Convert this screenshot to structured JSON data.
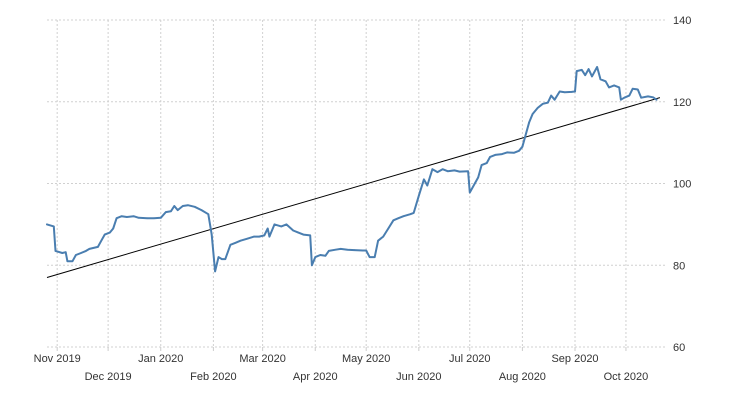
{
  "chart_data": {
    "type": "line",
    "title": "",
    "xlabel": "",
    "ylabel": "",
    "ylim": [
      60,
      140
    ],
    "y_ticks": [
      60,
      80,
      100,
      120,
      140
    ],
    "y_axis_position": "right",
    "grid": true,
    "x_ticks": [
      {
        "date": "2019-11-01",
        "label": "Nov 2019",
        "row": 1
      },
      {
        "date": "2019-12-01",
        "label": "Dec 2019",
        "row": 2
      },
      {
        "date": "2020-01-01",
        "label": "Jan 2020",
        "row": 1
      },
      {
        "date": "2020-02-01",
        "label": "Feb 2020",
        "row": 2
      },
      {
        "date": "2020-03-01",
        "label": "Mar 2020",
        "row": 1
      },
      {
        "date": "2020-04-01",
        "label": "Apr 2020",
        "row": 2
      },
      {
        "date": "2020-05-01",
        "label": "May 2020",
        "row": 1
      },
      {
        "date": "2020-06-01",
        "label": "Jun 2020",
        "row": 2
      },
      {
        "date": "2020-07-01",
        "label": "Jul 2020",
        "row": 1
      },
      {
        "date": "2020-08-01",
        "label": "Aug 2020",
        "row": 2
      },
      {
        "date": "2020-09-01",
        "label": "Sep 2020",
        "row": 1
      },
      {
        "date": "2020-10-01",
        "label": "Oct 2020",
        "row": 2
      }
    ],
    "xlim": [
      "2019-10-26",
      "2020-10-24"
    ],
    "series": [
      {
        "color": "#4a7eb0",
        "points": [
          [
            "2019-10-26",
            90
          ],
          [
            "2019-10-30",
            89.5
          ],
          [
            "2019-10-31",
            83.5
          ],
          [
            "2019-11-04",
            83
          ],
          [
            "2019-11-06",
            83.2
          ],
          [
            "2019-11-07",
            81
          ],
          [
            "2019-11-10",
            81
          ],
          [
            "2019-11-12",
            82.5
          ],
          [
            "2019-11-15",
            83
          ],
          [
            "2019-11-18",
            83.5
          ],
          [
            "2019-11-20",
            84
          ],
          [
            "2019-11-25",
            84.5
          ],
          [
            "2019-11-27",
            86
          ],
          [
            "2019-11-29",
            87.5
          ],
          [
            "2019-12-02",
            88
          ],
          [
            "2019-12-04",
            89
          ],
          [
            "2019-12-06",
            91.5
          ],
          [
            "2019-12-09",
            92
          ],
          [
            "2019-12-12",
            91.8
          ],
          [
            "2019-12-16",
            92
          ],
          [
            "2019-12-19",
            91.6
          ],
          [
            "2019-12-24",
            91.5
          ],
          [
            "2019-12-28",
            91.5
          ],
          [
            "2020-01-01",
            91.6
          ],
          [
            "2020-01-04",
            93
          ],
          [
            "2020-01-07",
            93.2
          ],
          [
            "2020-01-09",
            94.5
          ],
          [
            "2020-01-11",
            93.5
          ],
          [
            "2020-01-14",
            94.5
          ],
          [
            "2020-01-17",
            94.7
          ],
          [
            "2020-01-21",
            94.3
          ],
          [
            "2020-01-25",
            93.5
          ],
          [
            "2020-01-29",
            92.5
          ],
          [
            "2020-01-31",
            87.5
          ],
          [
            "2020-02-02",
            78.5
          ],
          [
            "2020-02-04",
            82
          ],
          [
            "2020-02-06",
            81.5
          ],
          [
            "2020-02-08",
            81.5
          ],
          [
            "2020-02-11",
            85
          ],
          [
            "2020-02-14",
            85.5
          ],
          [
            "2020-02-17",
            86
          ],
          [
            "2020-02-21",
            86.5
          ],
          [
            "2020-02-25",
            87
          ],
          [
            "2020-02-28",
            87
          ],
          [
            "2020-03-02",
            87.3
          ],
          [
            "2020-03-04",
            89
          ],
          [
            "2020-03-05",
            87
          ],
          [
            "2020-03-08",
            90
          ],
          [
            "2020-03-12",
            89.5
          ],
          [
            "2020-03-15",
            90
          ],
          [
            "2020-03-19",
            88.5
          ],
          [
            "2020-03-22",
            88
          ],
          [
            "2020-03-25",
            87.5
          ],
          [
            "2020-03-29",
            87.3
          ],
          [
            "2020-03-30",
            80
          ],
          [
            "2020-04-01",
            82
          ],
          [
            "2020-04-04",
            82.5
          ],
          [
            "2020-04-07",
            82.3
          ],
          [
            "2020-04-09",
            83.5
          ],
          [
            "2020-04-13",
            83.8
          ],
          [
            "2020-04-16",
            84
          ],
          [
            "2020-04-20",
            83.8
          ],
          [
            "2020-04-24",
            83.7
          ],
          [
            "2020-04-29",
            83.6
          ],
          [
            "2020-05-01",
            83.6
          ],
          [
            "2020-05-03",
            82
          ],
          [
            "2020-05-06",
            82
          ],
          [
            "2020-05-08",
            86
          ],
          [
            "2020-05-11",
            87
          ],
          [
            "2020-05-14",
            89
          ],
          [
            "2020-05-17",
            91
          ],
          [
            "2020-05-20",
            91.5
          ],
          [
            "2020-05-23",
            92
          ],
          [
            "2020-05-27",
            92.5
          ],
          [
            "2020-05-29",
            92.8
          ],
          [
            "2020-06-01",
            97
          ],
          [
            "2020-06-04",
            101
          ],
          [
            "2020-06-06",
            99.5
          ],
          [
            "2020-06-09",
            103.5
          ],
          [
            "2020-06-12",
            102.8
          ],
          [
            "2020-06-15",
            103.5
          ],
          [
            "2020-06-18",
            103
          ],
          [
            "2020-06-22",
            103.2
          ],
          [
            "2020-06-25",
            102.9
          ],
          [
            "2020-06-30",
            103
          ],
          [
            "2020-07-01",
            97.8
          ],
          [
            "2020-07-04",
            100
          ],
          [
            "2020-07-06",
            101.5
          ],
          [
            "2020-07-08",
            104.5
          ],
          [
            "2020-07-11",
            105
          ],
          [
            "2020-07-13",
            106.5
          ],
          [
            "2020-07-16",
            107
          ],
          [
            "2020-07-20",
            107.2
          ],
          [
            "2020-07-23",
            107.6
          ],
          [
            "2020-07-27",
            107.5
          ],
          [
            "2020-07-30",
            108
          ],
          [
            "2020-08-01",
            109
          ],
          [
            "2020-08-03",
            112
          ],
          [
            "2020-08-05",
            115
          ],
          [
            "2020-08-07",
            117
          ],
          [
            "2020-08-10",
            118.5
          ],
          [
            "2020-08-13",
            119.5
          ],
          [
            "2020-08-16",
            119.8
          ],
          [
            "2020-08-18",
            121.5
          ],
          [
            "2020-08-20",
            120.5
          ],
          [
            "2020-08-23",
            122.5
          ],
          [
            "2020-08-26",
            122.3
          ],
          [
            "2020-08-30",
            122.4
          ],
          [
            "2020-09-01",
            122.5
          ],
          [
            "2020-09-02",
            127.5
          ],
          [
            "2020-09-05",
            127.8
          ],
          [
            "2020-09-07",
            126.5
          ],
          [
            "2020-09-09",
            128
          ],
          [
            "2020-09-11",
            126.2
          ],
          [
            "2020-09-14",
            128.5
          ],
          [
            "2020-09-16",
            125.5
          ],
          [
            "2020-09-19",
            125
          ],
          [
            "2020-09-21",
            123.5
          ],
          [
            "2020-09-24",
            124
          ],
          [
            "2020-09-27",
            123.5
          ],
          [
            "2020-09-28",
            120.5
          ],
          [
            "2020-09-30",
            121
          ],
          [
            "2020-10-03",
            121.5
          ],
          [
            "2020-10-05",
            123.2
          ],
          [
            "2020-10-08",
            123
          ],
          [
            "2020-10-10",
            121
          ],
          [
            "2020-10-14",
            121.3
          ],
          [
            "2020-10-17",
            121.1
          ],
          [
            "2020-10-19",
            120.5
          ]
        ]
      }
    ],
    "trend_line": {
      "color": "#000000",
      "start": [
        "2019-10-26",
        77
      ],
      "end": [
        "2020-10-21",
        121
      ]
    }
  }
}
